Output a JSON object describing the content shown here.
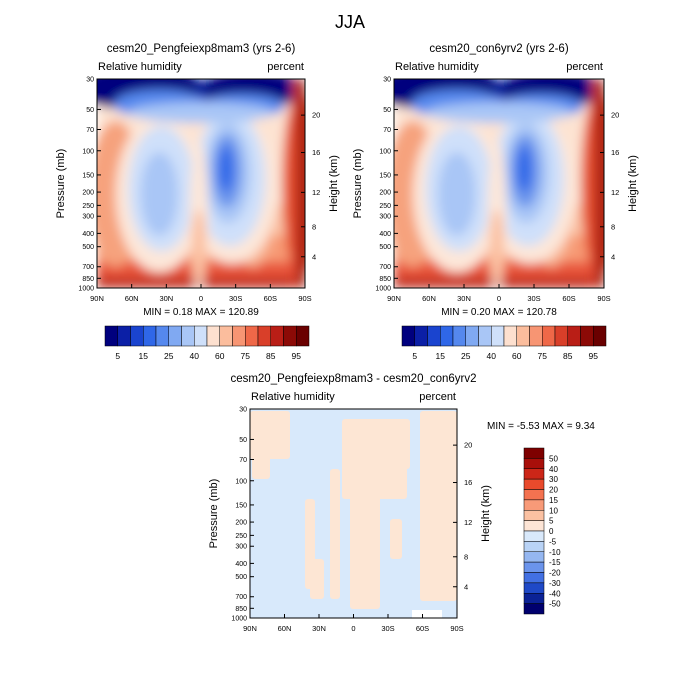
{
  "page_title": "JJA",
  "chart_data": [
    {
      "type": "heatmap",
      "title": "cesm20_Pengfeiexp8mam3 (yrs 2-6)",
      "left_label": "Relative humidity",
      "right_label": "percent",
      "ylabel": "Pressure (mb)",
      "ylabel_right": "Height (km)",
      "x_ticks": [
        "90N",
        "60N",
        "30N",
        "0",
        "30S",
        "60S",
        "90S"
      ],
      "y_ticks": [
        "1000",
        "850",
        "700",
        "500",
        "400",
        "300",
        "250",
        "200",
        "150",
        "100",
        "70",
        "50",
        "30"
      ],
      "y_right_ticks": [
        "4",
        "8",
        "12",
        "16",
        "20"
      ],
      "ylim": [
        1000,
        30
      ],
      "stats": "MIN =   0.18   MAX = 120.89",
      "colorbar_labels": [
        "5",
        "15",
        "25",
        "40",
        "60",
        "75",
        "85",
        "95"
      ]
    },
    {
      "type": "heatmap",
      "title": "cesm20_con6yrv2 (yrs 2-6)",
      "left_label": "Relative humidity",
      "right_label": "percent",
      "ylabel": "Pressure (mb)",
      "ylabel_right": "Height (km)",
      "x_ticks": [
        "90N",
        "60N",
        "30N",
        "0",
        "30S",
        "60S",
        "90S"
      ],
      "y_ticks": [
        "1000",
        "850",
        "700",
        "500",
        "400",
        "300",
        "250",
        "200",
        "150",
        "100",
        "70",
        "50",
        "30"
      ],
      "y_right_ticks": [
        "4",
        "8",
        "12",
        "16",
        "20"
      ],
      "ylim": [
        1000,
        30
      ],
      "stats": "MIN =   0.20   MAX = 120.78",
      "colorbar_labels": [
        "5",
        "15",
        "25",
        "40",
        "60",
        "75",
        "85",
        "95"
      ]
    },
    {
      "type": "heatmap",
      "title": "cesm20_Pengfeiexp8mam3 - cesm20_con6yrv2",
      "left_label": "Relative humidity",
      "right_label": "percent",
      "ylabel": "Pressure (mb)",
      "ylabel_right": "Height (km)",
      "x_ticks": [
        "90N",
        "60N",
        "30N",
        "0",
        "30S",
        "60S",
        "90S"
      ],
      "y_ticks": [
        "1000",
        "850",
        "700",
        "500",
        "400",
        "300",
        "250",
        "200",
        "150",
        "100",
        "70",
        "50",
        "30"
      ],
      "y_right_ticks": [
        "4",
        "8",
        "12",
        "16",
        "20"
      ],
      "ylim": [
        1000,
        30
      ],
      "stats": "MIN =  -5.53   MAX =   9.34",
      "colorbar_labels": [
        "50",
        "40",
        "30",
        "20",
        "15",
        "10",
        "5",
        "0",
        "-5",
        "-10",
        "-15",
        "-20",
        "-30",
        "-40",
        "-50"
      ]
    }
  ],
  "colors": {
    "abs_scale": [
      "#00007e",
      "#0b1fa6",
      "#1a44cf",
      "#2f67e8",
      "#5588ee",
      "#80a9f2",
      "#a9c6f6",
      "#cfe0fa",
      "#fde0cf",
      "#fbbd9d",
      "#f79573",
      "#ef6848",
      "#d93f29",
      "#b91e16",
      "#8c0a06",
      "#6a0000"
    ],
    "diff_scale": [
      "#7e0000",
      "#a80f0a",
      "#cc2618",
      "#e94a2c",
      "#f47250",
      "#f89a78",
      "#fbc1a2",
      "#fde5d6",
      "#d9e9fb",
      "#b9d3f6",
      "#95b7f1",
      "#6b94ec",
      "#4270e3",
      "#1f49c7",
      "#0b2296",
      "#00006e"
    ],
    "diff_pos_fill": "#fde6d4",
    "diff_neg_fill": "#d8e9fb"
  }
}
